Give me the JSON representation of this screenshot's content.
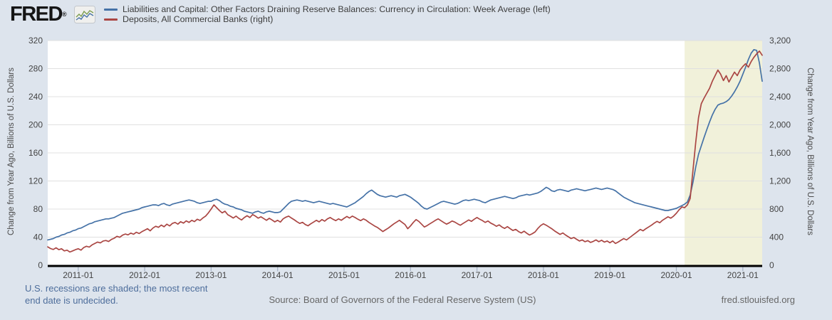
{
  "header": {
    "logo_text": "FRED",
    "logo_mark": "®",
    "legend": [
      {
        "label": "Liabilities and Capital: Other Factors Draining Reserve Balances: Currency in Circulation: Week Average (left)",
        "color": "#4572a7"
      },
      {
        "label": "Deposits, All Commercial Banks (right)",
        "color": "#aa4643"
      }
    ]
  },
  "footer": {
    "recession_note_line1": "U.S. recessions are shaded; the most recent",
    "recession_note_line2": "end date is undecided.",
    "source": "Source: Board of Governors of the Federal Reserve System (US)",
    "site": "fred.stlouisfed.org"
  },
  "chart_data": {
    "type": "line",
    "x_domain": [
      2010.5417,
      2021.2917
    ],
    "x_start": 2010.5417,
    "x_step": 0.0416667,
    "grid": true,
    "colors": {
      "background": "#dde4ed",
      "plot": "#ffffff",
      "gridline": "#e0e0e0",
      "recession_band": "#f1f1da",
      "zero_axis": "#000000",
      "x_tick": "#a8b4c6"
    },
    "left_axis": {
      "label": "Change from Year Ago, Billions of U.S. Dollars",
      "min": 0,
      "max": 320,
      "tick_values": [
        0,
        40,
        80,
        120,
        160,
        200,
        240,
        280,
        320
      ],
      "tick_labels": [
        "0",
        "40",
        "80",
        "120",
        "160",
        "200",
        "240",
        "280",
        "320"
      ]
    },
    "right_axis": {
      "label": "Change from Year Ago, Billions of U.S. Dollars",
      "min": 0,
      "max": 3200,
      "tick_values": [
        0,
        400,
        800,
        1200,
        1600,
        2000,
        2400,
        2800,
        3200
      ],
      "tick_labels": [
        "0",
        "400",
        "800",
        "1,200",
        "1,600",
        "2,000",
        "2,400",
        "2,800",
        "3,200"
      ]
    },
    "x_ticks": [
      {
        "t": 2011.0,
        "label": "2011-01"
      },
      {
        "t": 2012.0,
        "label": "2012-01"
      },
      {
        "t": 2013.0,
        "label": "2013-01"
      },
      {
        "t": 2014.0,
        "label": "2014-01"
      },
      {
        "t": 2015.0,
        "label": "2015-01"
      },
      {
        "t": 2016.0,
        "label": "2016-01"
      },
      {
        "t": 2017.0,
        "label": "2017-01"
      },
      {
        "t": 2018.0,
        "label": "2018-01"
      },
      {
        "t": 2019.0,
        "label": "2019-01"
      },
      {
        "t": 2020.0,
        "label": "2020-01"
      },
      {
        "t": 2021.0,
        "label": "2021-01"
      }
    ],
    "recession_band": {
      "start": 2020.125,
      "end": 2021.2917
    },
    "series": [
      {
        "name": "Liabilities and Capital: Other Factors Draining Reserve Balances: Currency in Circulation: Week Average (left)",
        "axis": "left",
        "color": "#4572a7",
        "values": [
          36,
          37,
          38,
          40,
          41,
          43,
          44,
          46,
          47,
          49,
          50,
          52,
          53,
          55,
          57,
          59,
          60,
          62,
          63,
          64,
          65,
          66,
          66,
          67,
          68,
          70,
          72,
          74,
          75,
          76,
          77,
          78,
          79,
          80,
          82,
          83,
          84,
          85,
          86,
          86,
          85,
          87,
          88,
          86,
          85,
          87,
          88,
          89,
          90,
          91,
          92,
          93,
          92,
          91,
          89,
          88,
          89,
          90,
          91,
          91,
          93,
          94,
          92,
          89,
          87,
          86,
          84,
          83,
          81,
          80,
          79,
          77,
          76,
          75,
          74,
          76,
          77,
          75,
          74,
          76,
          77,
          76,
          75,
          75,
          76,
          80,
          84,
          88,
          91,
          92,
          93,
          92,
          91,
          92,
          91,
          90,
          89,
          90,
          91,
          90,
          89,
          88,
          87,
          88,
          87,
          86,
          85,
          84,
          83,
          85,
          87,
          89,
          92,
          95,
          98,
          102,
          105,
          107,
          104,
          101,
          99,
          98,
          97,
          98,
          99,
          98,
          97,
          99,
          100,
          101,
          99,
          97,
          94,
          91,
          88,
          84,
          81,
          80,
          82,
          84,
          86,
          88,
          90,
          91,
          90,
          89,
          88,
          87,
          88,
          90,
          92,
          93,
          92,
          93,
          94,
          93,
          92,
          90,
          89,
          91,
          93,
          94,
          95,
          96,
          97,
          98,
          97,
          96,
          95,
          96,
          98,
          99,
          100,
          101,
          100,
          101,
          102,
          103,
          105,
          108,
          111,
          109,
          106,
          105,
          107,
          108,
          107,
          106,
          105,
          107,
          108,
          109,
          108,
          107,
          106,
          107,
          108,
          109,
          110,
          109,
          108,
          109,
          110,
          109,
          108,
          106,
          103,
          100,
          97,
          95,
          93,
          91,
          89,
          88,
          87,
          86,
          85,
          84,
          83,
          82,
          81,
          80,
          79,
          78,
          78,
          79,
          80,
          81,
          83,
          85,
          87,
          90,
          100,
          118,
          140,
          158,
          170,
          182,
          193,
          204,
          214,
          222,
          228,
          230,
          231,
          233,
          236,
          241,
          247,
          254,
          262,
          272,
          282,
          293,
          302,
          307,
          306,
          288,
          262
        ]
      },
      {
        "name": "Deposits, All Commercial Banks (right)",
        "axis": "right",
        "color": "#aa4643",
        "values": [
          262,
          238,
          225,
          248,
          222,
          235,
          205,
          215,
          188,
          205,
          222,
          235,
          215,
          252,
          270,
          258,
          290,
          310,
          330,
          318,
          345,
          352,
          338,
          368,
          385,
          412,
          398,
          428,
          445,
          432,
          458,
          442,
          470,
          452,
          478,
          498,
          520,
          490,
          530,
          555,
          540,
          572,
          548,
          585,
          560,
          595,
          610,
          585,
          620,
          600,
          632,
          610,
          640,
          622,
          655,
          638,
          672,
          700,
          745,
          800,
          860,
          820,
          780,
          745,
          770,
          720,
          698,
          672,
          700,
          668,
          645,
          680,
          705,
          680,
          722,
          700,
          670,
          690,
          665,
          640,
          668,
          645,
          618,
          640,
          615,
          660,
          685,
          700,
          672,
          648,
          620,
          595,
          612,
          580,
          562,
          590,
          615,
          640,
          618,
          650,
          628,
          660,
          680,
          655,
          635,
          660,
          640,
          668,
          695,
          672,
          700,
          680,
          655,
          635,
          660,
          640,
          610,
          585,
          560,
          540,
          510,
          480,
          505,
          530,
          560,
          590,
          615,
          640,
          610,
          580,
          520,
          560,
          610,
          650,
          625,
          585,
          545,
          565,
          590,
          615,
          640,
          660,
          635,
          610,
          585,
          605,
          630,
          615,
          590,
          570,
          595,
          620,
          645,
          625,
          655,
          680,
          655,
          635,
          610,
          630,
          600,
          580,
          555,
          575,
          545,
          525,
          550,
          520,
          495,
          510,
          480,
          460,
          485,
          455,
          430,
          450,
          475,
          525,
          565,
          590,
          570,
          545,
          520,
          490,
          465,
          440,
          460,
          430,
          405,
          380,
          395,
          370,
          345,
          360,
          335,
          350,
          325,
          340,
          360,
          335,
          355,
          330,
          345,
          320,
          345,
          310,
          330,
          355,
          380,
          360,
          390,
          420,
          450,
          480,
          510,
          490,
          520,
          545,
          570,
          600,
          625,
          605,
          640,
          665,
          690,
          670,
          700,
          740,
          790,
          830,
          820,
          860,
          950,
          1350,
          1750,
          2100,
          2300,
          2380,
          2450,
          2520,
          2620,
          2700,
          2780,
          2720,
          2630,
          2700,
          2610,
          2680,
          2750,
          2700,
          2780,
          2830,
          2870,
          2820,
          2900,
          2960,
          3010,
          3050,
          2990
        ]
      }
    ]
  }
}
